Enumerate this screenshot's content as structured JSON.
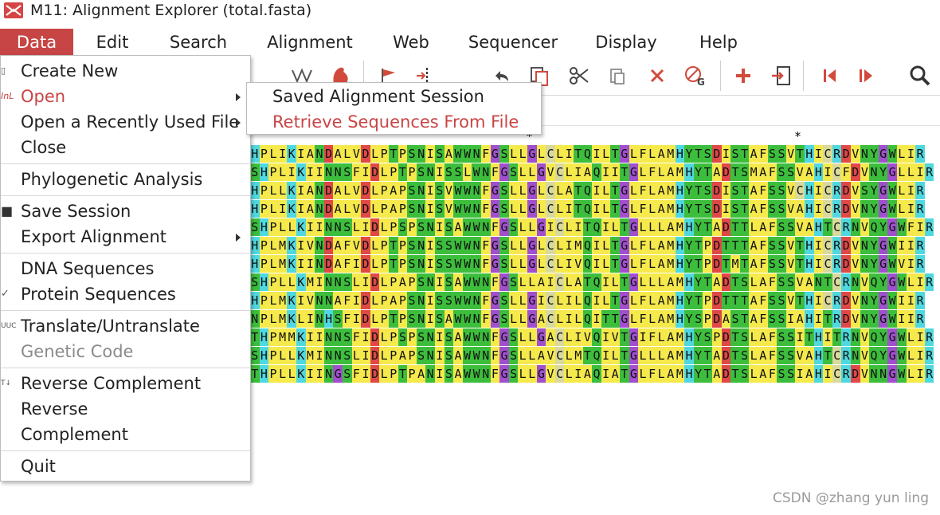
{
  "window": {
    "title": "M11: Alignment Explorer (total.fasta)"
  },
  "menubar": [
    {
      "label": "Data",
      "active": true
    },
    {
      "label": "Edit"
    },
    {
      "label": "Search"
    },
    {
      "label": "Alignment"
    },
    {
      "label": "Web"
    },
    {
      "label": "Sequencer"
    },
    {
      "label": "Display"
    },
    {
      "label": "Help"
    }
  ],
  "data_menu": {
    "items": [
      {
        "label": "Create New",
        "icon": "new-file-icon"
      },
      {
        "label": "Open",
        "icon": "open-icon",
        "submenu": true,
        "highlighted": true
      },
      {
        "label": "Open a Recently Used File",
        "submenu": true
      },
      {
        "label": "Close"
      },
      {
        "separator": true
      },
      {
        "label": "Phylogenetic Analysis"
      },
      {
        "separator": true
      },
      {
        "label": "Save Session",
        "icon": "save-icon"
      },
      {
        "label": "Export Alignment",
        "submenu": true
      },
      {
        "separator": true
      },
      {
        "label": "DNA Sequences"
      },
      {
        "label": "Protein Sequences",
        "checked": true
      },
      {
        "separator": true
      },
      {
        "label": "Translate/Untranslate",
        "icon": "translate-icon"
      },
      {
        "label": "Genetic Code",
        "disabled": true
      },
      {
        "separator": true
      },
      {
        "label": "Reverse Complement",
        "icon": "reverse-complement-icon"
      },
      {
        "label": "Reverse"
      },
      {
        "label": "Complement"
      },
      {
        "separator": true
      },
      {
        "label": "Quit"
      }
    ]
  },
  "open_submenu": {
    "items": [
      {
        "label": "Saved Alignment Session"
      },
      {
        "label": "Retrieve Sequences From File",
        "highlighted": true
      }
    ]
  },
  "alignment": {
    "markers": [
      "*",
      "*"
    ],
    "rows": [
      "HPLIKIANDALVDLPTPSNISAWWNFGSLLGLCLITQILTGLFLAMHYTSDISTAFSSVTHICRDVNYGWLIR",
      "SHPLIKIINNSFIDLPTPSNISSLWNFGSLLGVCLIAQIITGLFLAMHYTADTSMAFSSVAHICFDVNYGLLIR",
      "HPLLKIANDALVDLPAPSNISVWWNFGSLLGLCLATQILTGLFLAMHYTSDISTAFSSVCHICRDVSYGWLIR",
      "HPLIKIANDALVDLPAPSNISVWWNFGSLLGLCLITQILTGLFLAMHYTSDISTAFSSVAHICRDVNYGWLIR",
      "SHPLLKIINNSLIDLPSPSNISAWWNFGSLLGICLITQILTGLLLAMHYTADTTLAFSSVAHTCRNVQYGWFIR",
      "HPLMKIVNDAFVDLPTPSNISSWWNFGSLLGLCLIMQILTGLFLAMHYTPDTTTAFSSVTHICRDVNYGWIIR",
      "HPLMKIINDAFIDLPTPSNISSWWNFGSLLGLCLIVQILTGLFLAMHYTPDTMTAFSSVTHICRDVNYGWVIR",
      "SHPLLKMINNSLIDLPAPSNISAWWNFGSLLAICLATQILTGLLLAMHYTADTSLAFSSVANTCRNVQYGWLIR",
      "HPLMKIVNNAFIDLPAPSNISSWWNFGSLLGICLILQILTGLFLAMHYTPDTTTAFSSVTHICRDVNYGWIIR",
      "NPLMKLINHSFIDLPTPSNISAWWNFGSLLGACLILQITTGLFLAMHYSPDASTAFSSIAHITRDVNYGWIIR",
      "THPMMKIINNSFIDLPSPSNISAWWNFGSLLGACLIVQIVTGIFLAMHYSPDTSLAFSSITHITRNVQYGWLIR",
      "SHPLLKMINNSLIDLPAPSNISAWWNFGSLLAVCLMTQILTGLLLAMHYTADTSLAFSSVAHTCRNVQYGWLIR",
      "THPLLKIINGSFIDLPTPANISAWWNFGSLLGVCLIAQIATGLFLAMHYTADTSLAFSSIAHICRDVNNGWLIR"
    ]
  },
  "residue_colors": {
    "A": "#f5e94c",
    "L": "#f5e94c",
    "I": "#f5e94c",
    "V": "#f5e94c",
    "M": "#f5e94c",
    "F": "#f5e94c",
    "S": "#3cbe3c",
    "T": "#3cbe3c",
    "N": "#3cbe3c",
    "Q": "#3cbe3c",
    "W": "#3cbe3c",
    "Y": "#3cbe3c",
    "G": "#a14fcf",
    "P": "#f5e94c",
    "H": "#4fd8e0",
    "R": "#4fd8e0",
    "K": "#4fd8e0",
    "D": "#e04848",
    "E": "#e04848",
    "C": "#d9d99c"
  },
  "toolbar": {
    "icons": [
      "dna-strand-icon",
      "muscle-arm-icon",
      "flag-icon",
      "insert-gap-icon",
      "undo-icon",
      "copy-icon",
      "cut-icon",
      "paste-icon",
      "delete-icon",
      "delete-gap-icon",
      "add-icon",
      "import-icon",
      "previous-icon",
      "next-icon",
      "search-icon"
    ]
  },
  "watermark": "CSDN @zhang yun ling"
}
